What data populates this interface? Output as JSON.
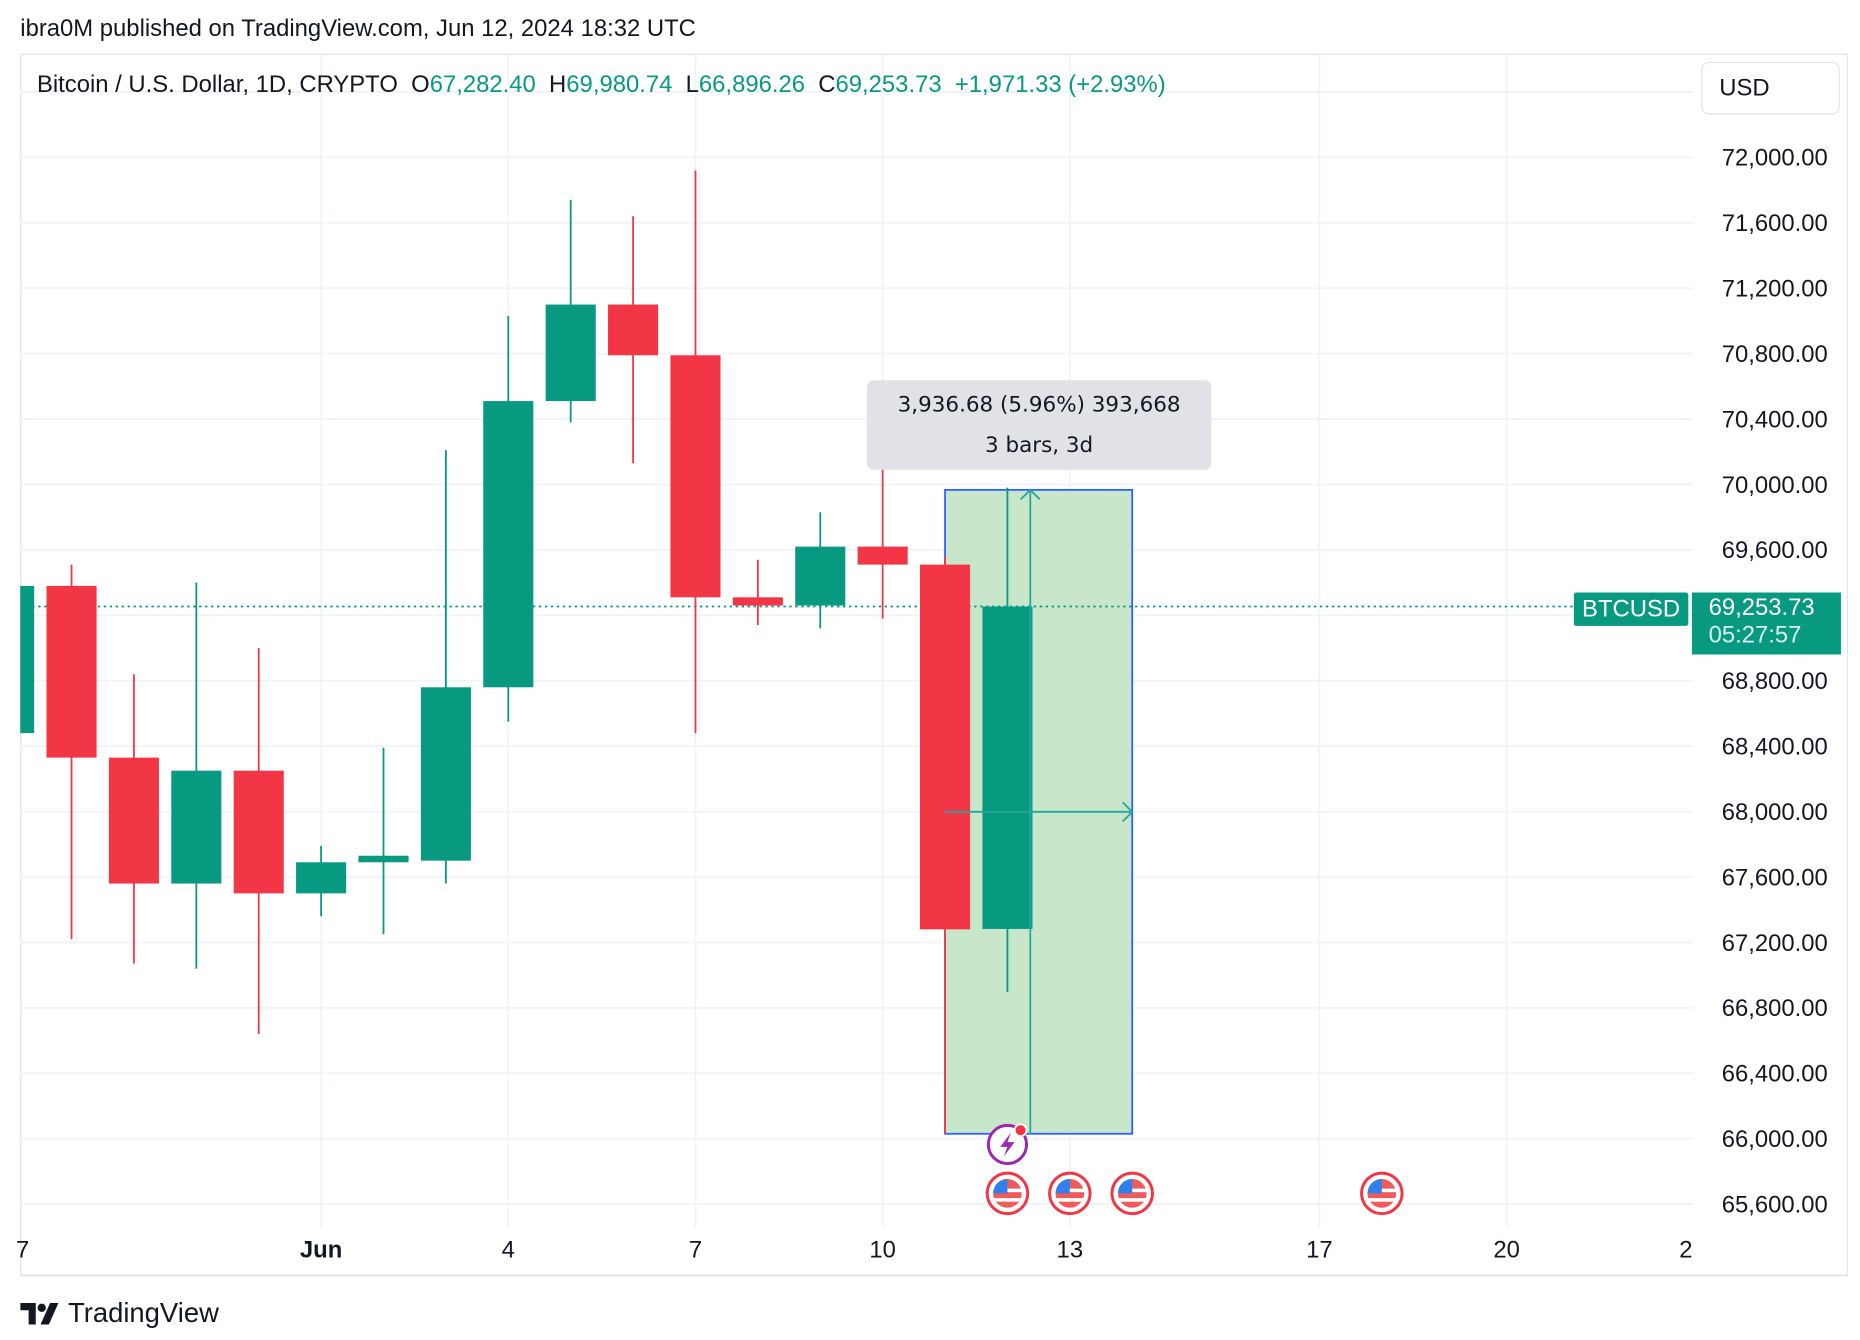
{
  "header": {
    "published": "ibra0M published on TradingView.com, Jun 12, 2024 18:32 UTC"
  },
  "legend": {
    "symbol": "Bitcoin / U.S. Dollar, 1D, CRYPTO",
    "o_label": "O",
    "o": "67,282.40",
    "h_label": "H",
    "h": "69,980.74",
    "l_label": "L",
    "l": "66,896.26",
    "c_label": "C",
    "c": "69,253.73",
    "change": "+1,971.33 (+2.93%)"
  },
  "currency": "USD",
  "price_tag": {
    "symbol": "BTCUSD",
    "price": "69,253.73",
    "countdown": "05:27:57"
  },
  "measure": {
    "line1": "3,936.68 (5.96%) 393,668",
    "line2": "3 bars, 3d",
    "from_date": "2024-06-11",
    "to_date": "2024-06-14",
    "low": 66030,
    "high": 69967
  },
  "footer": {
    "brand": "TradingView"
  },
  "colors": {
    "up": "#089981",
    "down": "#f23645",
    "measure_fill": "#c8e6c9",
    "measure_border": "#2962ff",
    "event": "#9c27b0"
  },
  "events": [
    {
      "date": "2024-06-12",
      "icon": "lightning-icon",
      "row": 1
    },
    {
      "date": "2024-06-12",
      "icon": "us-flag-icon",
      "row": 2
    },
    {
      "date": "2024-06-13",
      "icon": "us-flag-icon",
      "row": 2
    },
    {
      "date": "2024-06-14",
      "icon": "us-flag-icon",
      "row": 2
    },
    {
      "date": "2024-06-18",
      "icon": "us-flag-icon",
      "row": 2
    }
  ],
  "chart_data": {
    "type": "candlestick",
    "title": "Bitcoin / U.S. Dollar, 1D, CRYPTO",
    "ylim": [
      65500,
      72500
    ],
    "y_ticks": [
      "72,000.00",
      "71,600.00",
      "71,200.00",
      "70,800.00",
      "70,400.00",
      "70,000.00",
      "69,600.00",
      "69,200.00",
      "68,800.00",
      "68,400.00",
      "68,000.00",
      "67,600.00",
      "67,200.00",
      "66,800.00",
      "66,400.00",
      "66,000.00",
      "65,600.00"
    ],
    "y_tick_values": [
      72000,
      71600,
      71200,
      70800,
      70400,
      70000,
      69600,
      69200,
      68800,
      68400,
      68000,
      67600,
      67200,
      66800,
      66400,
      66000,
      65600
    ],
    "x_ticks": [
      {
        "date": "2024-05-27",
        "label": "7"
      },
      {
        "date": "2024-06-01",
        "label": "Jun",
        "bold": true
      },
      {
        "date": "2024-06-04",
        "label": "4"
      },
      {
        "date": "2024-06-07",
        "label": "7"
      },
      {
        "date": "2024-06-10",
        "label": "10"
      },
      {
        "date": "2024-06-13",
        "label": "13"
      },
      {
        "date": "2024-06-17",
        "label": "17"
      },
      {
        "date": "2024-06-20",
        "label": "20"
      },
      {
        "date": "2024-06-23",
        "label": "2"
      }
    ],
    "last_price": 69253.73,
    "grid": true,
    "candles": [
      {
        "date": "2024-05-27",
        "o": 68480,
        "h": 69390,
        "l": 68480,
        "c": 69380
      },
      {
        "date": "2024-05-28",
        "o": 69380,
        "h": 69510,
        "l": 67220,
        "c": 68330
      },
      {
        "date": "2024-05-29",
        "o": 68330,
        "h": 68840,
        "l": 67070,
        "c": 67560
      },
      {
        "date": "2024-05-30",
        "o": 67560,
        "h": 69400,
        "l": 67040,
        "c": 68250
      },
      {
        "date": "2024-05-31",
        "o": 68250,
        "h": 69000,
        "l": 66640,
        "c": 67500
      },
      {
        "date": "2024-06-01",
        "o": 67500,
        "h": 67790,
        "l": 67360,
        "c": 67690
      },
      {
        "date": "2024-06-02",
        "o": 67690,
        "h": 68390,
        "l": 67250,
        "c": 67730
      },
      {
        "date": "2024-06-03",
        "o": 67700,
        "h": 70210,
        "l": 67560,
        "c": 68760
      },
      {
        "date": "2024-06-04",
        "o": 68760,
        "h": 71030,
        "l": 68550,
        "c": 70510
      },
      {
        "date": "2024-06-05",
        "o": 70510,
        "h": 71740,
        "l": 70380,
        "c": 71100
      },
      {
        "date": "2024-06-06",
        "o": 71100,
        "h": 71640,
        "l": 70130,
        "c": 70790
      },
      {
        "date": "2024-06-07",
        "o": 70790,
        "h": 71920,
        "l": 68480,
        "c": 69310
      },
      {
        "date": "2024-06-08",
        "o": 69310,
        "h": 69540,
        "l": 69140,
        "c": 69260
      },
      {
        "date": "2024-06-09",
        "o": 69260,
        "h": 69830,
        "l": 69120,
        "c": 69620
      },
      {
        "date": "2024-06-10",
        "o": 69620,
        "h": 70160,
        "l": 69180,
        "c": 69510
      },
      {
        "date": "2024-06-11",
        "o": 69510,
        "h": 69560,
        "l": 66030,
        "c": 67280
      },
      {
        "date": "2024-06-12",
        "o": 67282.4,
        "h": 69980.74,
        "l": 66896.26,
        "c": 69253.73
      }
    ]
  }
}
